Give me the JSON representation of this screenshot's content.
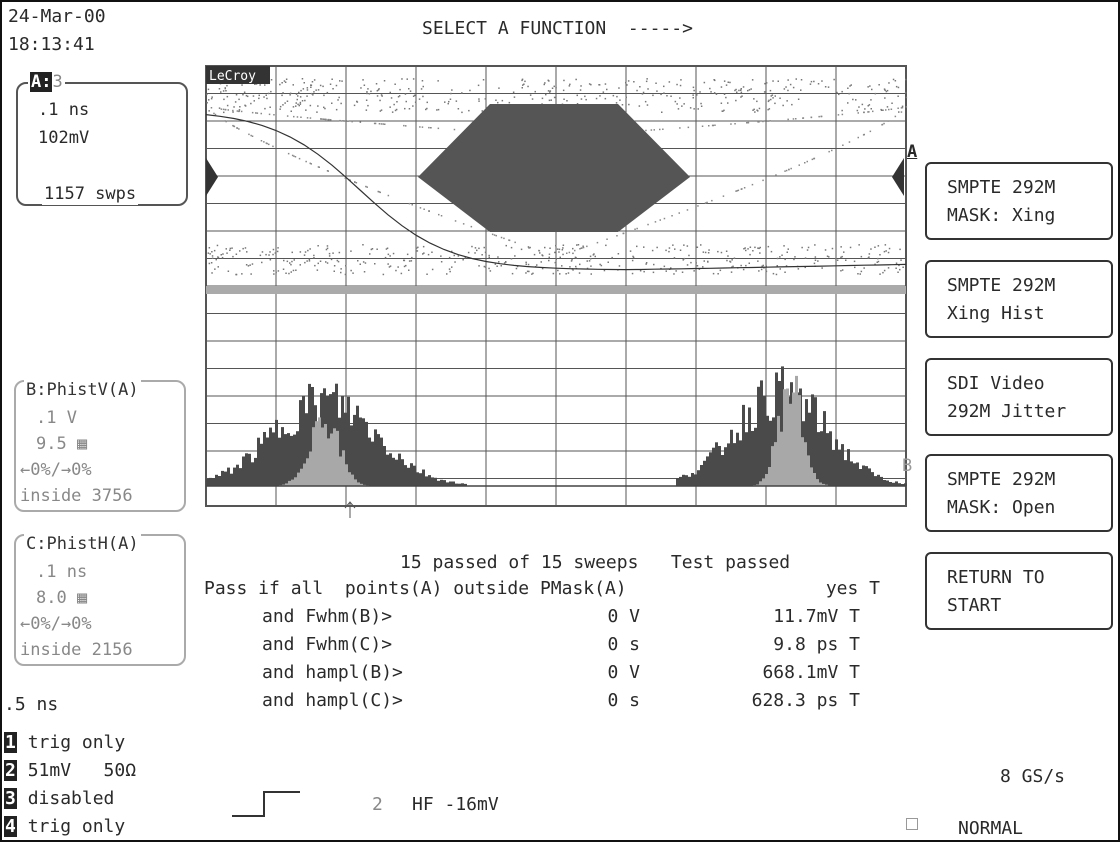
{
  "header": {
    "date": "24-Mar-00",
    "time": "18:13:41",
    "prompt": "SELECT A FUNCTION  ----->"
  },
  "trace_a": {
    "label": "A:",
    "source": "3",
    "timebase": ".1 ns",
    "voltage": "102mV",
    "sweeps": "1157 swps"
  },
  "trace_b": {
    "label": "B:PhistV(A)",
    "line1": ".1 V",
    "line2": "9.5 ▦",
    "line3": "←0%/→0%",
    "line4": "inside 3756"
  },
  "trace_c": {
    "label": "C:PhistH(A)",
    "line1": ".1 ns",
    "line2": "8.0 ▦",
    "line3": "←0%/→0%",
    "line4": "inside 2156"
  },
  "timebase": ".5 ns",
  "channels": [
    {
      "num": "1",
      "text": "trig only"
    },
    {
      "num": "2",
      "text": "51mV   50Ω"
    },
    {
      "num": "3",
      "text": "disabled"
    },
    {
      "num": "4",
      "text": "trig only"
    }
  ],
  "trigger": {
    "channel": "2",
    "text": "HF -16mV"
  },
  "sample_rate": "8 GS/s",
  "mode": "NORMAL",
  "grid_logo": "LeCroy",
  "trace_markers": {
    "a": "A",
    "b": "B"
  },
  "results": {
    "summary": "15 passed of 15 sweeps   Test passed",
    "rows": [
      {
        "condition": "Pass if all  points(A) outside PMask(A)",
        "limit": "",
        "value": "yes T"
      },
      {
        "condition": "and Fwhm(B)>",
        "limit": "0 V",
        "value": "11.7mV T"
      },
      {
        "condition": "and Fwhm(C)>",
        "limit": "0 s",
        "value": "9.8 ps T"
      },
      {
        "condition": "and hampl(B)>",
        "limit": "0 V",
        "value": "668.1mV T"
      },
      {
        "condition": "and hampl(C)>",
        "limit": "0 s",
        "value": "628.3 ps T"
      }
    ]
  },
  "softkeys": [
    {
      "line1": "SMPTE 292M",
      "line2": "MASK: Xing"
    },
    {
      "line1": "SMPTE 292M",
      "line2": "Xing Hist"
    },
    {
      "line1": "SDI Video",
      "line2": "292M Jitter"
    },
    {
      "line1": "SMPTE 292M",
      "line2": "MASK: Open"
    },
    {
      "line1": "RETURN TO",
      "line2": "START"
    }
  ],
  "colors": {
    "ink": "#2a2a2a",
    "mask": "#555555",
    "histogram_dark": "#4a4a4a",
    "histogram_light": "#a8a8a8",
    "grid": "#555555"
  }
}
